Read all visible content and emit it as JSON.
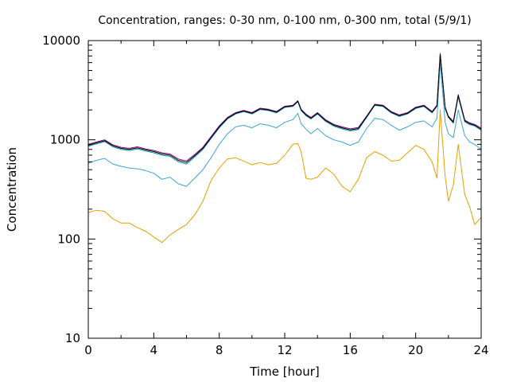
{
  "chart_data": {
    "type": "line",
    "title": "Concentration, ranges: 0-30 nm, 0-100 nm, 0-300 nm, total (5/9/1)",
    "xlabel": "Time [hour]",
    "ylabel": "Concentration",
    "xlim": [
      0,
      24
    ],
    "ylim": [
      10,
      10000
    ],
    "yscale": "log",
    "grid": false,
    "legend": "none",
    "x_ticks": [
      "0",
      "4",
      "8",
      "12",
      "16",
      "20",
      "24"
    ],
    "y_ticks": [
      "10",
      "100",
      "1000",
      "10000"
    ],
    "x": [
      0,
      0.5,
      1,
      1.5,
      2,
      2.5,
      3,
      3.5,
      4,
      4.5,
      5,
      5.5,
      6,
      6.5,
      7,
      7.5,
      8,
      8.5,
      9,
      9.5,
      10,
      10.5,
      11,
      11.5,
      12,
      12.5,
      12.8,
      13,
      13.3,
      13.6,
      14,
      14.5,
      15,
      15.5,
      16,
      16.5,
      17,
      17.5,
      18,
      18.5,
      19,
      19.5,
      20,
      20.5,
      21,
      21.3,
      21.5,
      21.8,
      22,
      22.3,
      22.6,
      23,
      23.3,
      23.6,
      24
    ],
    "series": [
      {
        "color": "#000000",
        "values": [
          880,
          930,
          980,
          870,
          820,
          800,
          830,
          790,
          760,
          720,
          700,
          620,
          590,
          690,
          820,
          1050,
          1350,
          1650,
          1850,
          1950,
          1850,
          2050,
          2000,
          1900,
          2150,
          2200,
          2450,
          2000,
          1780,
          1650,
          1850,
          1560,
          1400,
          1320,
          1260,
          1300,
          1700,
          2250,
          2200,
          1900,
          1750,
          1850,
          2100,
          2200,
          1900,
          2200,
          7300,
          2100,
          1700,
          1500,
          2800,
          1550,
          1450,
          1400,
          1280
        ]
      },
      {
        "color": "#800080",
        "values": [
          900,
          950,
          1000,
          890,
          840,
          820,
          850,
          810,
          780,
          740,
          720,
          640,
          610,
          710,
          840,
          1080,
          1380,
          1680,
          1880,
          1980,
          1880,
          2080,
          2030,
          1930,
          2180,
          2230,
          2480,
          2030,
          1810,
          1680,
          1880,
          1590,
          1430,
          1350,
          1290,
          1330,
          1730,
          2280,
          2230,
          1930,
          1780,
          1880,
          2130,
          2230,
          1930,
          2230,
          7400,
          2130,
          1730,
          1530,
          2850,
          1580,
          1480,
          1430,
          1310
        ]
      },
      {
        "color": "#009e9e",
        "values": [
          860,
          910,
          960,
          850,
          800,
          780,
          810,
          770,
          740,
          700,
          680,
          600,
          570,
          670,
          800,
          1030,
          1320,
          1620,
          1820,
          1920,
          1820,
          2020,
          1970,
          1870,
          2120,
          2170,
          2420,
          1970,
          1750,
          1620,
          1820,
          1530,
          1370,
          1290,
          1230,
          1270,
          1670,
          2220,
          2170,
          1870,
          1720,
          1820,
          2070,
          2170,
          1870,
          2170,
          7100,
          2050,
          1680,
          1470,
          2700,
          1520,
          1420,
          1380,
          1250
        ]
      },
      {
        "color": "#3ba3d6",
        "values": [
          580,
          620,
          650,
          570,
          540,
          520,
          510,
          490,
          460,
          400,
          420,
          360,
          340,
          410,
          500,
          660,
          900,
          1150,
          1350,
          1400,
          1320,
          1450,
          1400,
          1320,
          1500,
          1600,
          1850,
          1450,
          1280,
          1150,
          1300,
          1100,
          1000,
          950,
          880,
          950,
          1300,
          1650,
          1600,
          1400,
          1250,
          1350,
          1500,
          1550,
          1350,
          1650,
          6000,
          1500,
          1150,
          1050,
          2000,
          1100,
          950,
          900,
          800
        ]
      },
      {
        "color": "#e69f00",
        "values": [
          185,
          195,
          190,
          160,
          145,
          145,
          130,
          120,
          105,
          92,
          110,
          125,
          140,
          175,
          240,
          390,
          520,
          640,
          660,
          610,
          560,
          590,
          560,
          580,
          700,
          900,
          920,
          760,
          410,
          400,
          420,
          520,
          450,
          340,
          300,
          400,
          660,
          760,
          700,
          610,
          620,
          740,
          880,
          800,
          600,
          410,
          2000,
          430,
          240,
          350,
          900,
          280,
          210,
          140,
          165
        ]
      }
    ]
  }
}
